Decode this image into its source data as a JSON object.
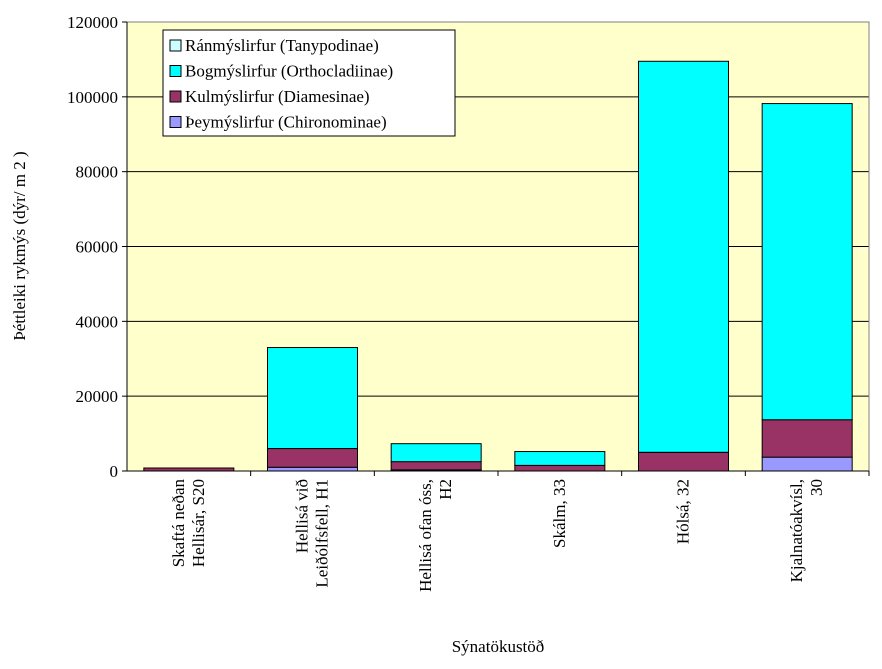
{
  "chart_data": {
    "type": "bar",
    "stacked": true,
    "xlabel": "Sýnatökustöð",
    "ylabel": "Þéttleiki rykmýs (dýr/ m 2 )",
    "ylim": [
      0,
      120000
    ],
    "yticks": [
      "0",
      "20000",
      "40000",
      "60000",
      "80000",
      "100000",
      "120000"
    ],
    "grid": true,
    "legend_position": "top-left",
    "categories": [
      [
        "Skaftá neðan",
        "Hellisár, S20"
      ],
      [
        "Hellisá við",
        "Leiðólfsfell, H1"
      ],
      [
        "Hellisá ofan óss,",
        "H2"
      ],
      [
        "Skálm, 33"
      ],
      [
        "Hólsá, 32"
      ],
      [
        "Kjalnatóakvísl,",
        "30"
      ]
    ],
    "series": [
      {
        "name": "Þeymýslirfur (Chironominae)",
        "color": "#9999ff",
        "values": [
          0,
          1000,
          300,
          0,
          0,
          3700
        ]
      },
      {
        "name": "Kulmýslirfur (Diamesinae)",
        "color": "#993366",
        "values": [
          800,
          5000,
          2200,
          1500,
          5000,
          10000
        ]
      },
      {
        "name": "Bogmýslirfur (Orthocladiinae)",
        "color": "#00ffff",
        "values": [
          0,
          27000,
          4800,
          3700,
          104500,
          84500
        ]
      },
      {
        "name": "Ránmýslirfur (Tanypodinae)",
        "color": "#ccffff",
        "values": [
          0,
          0,
          0,
          0,
          0,
          0
        ]
      }
    ],
    "legend_order": [
      3,
      2,
      1,
      0
    ],
    "plot_background": "#ffffcc"
  }
}
